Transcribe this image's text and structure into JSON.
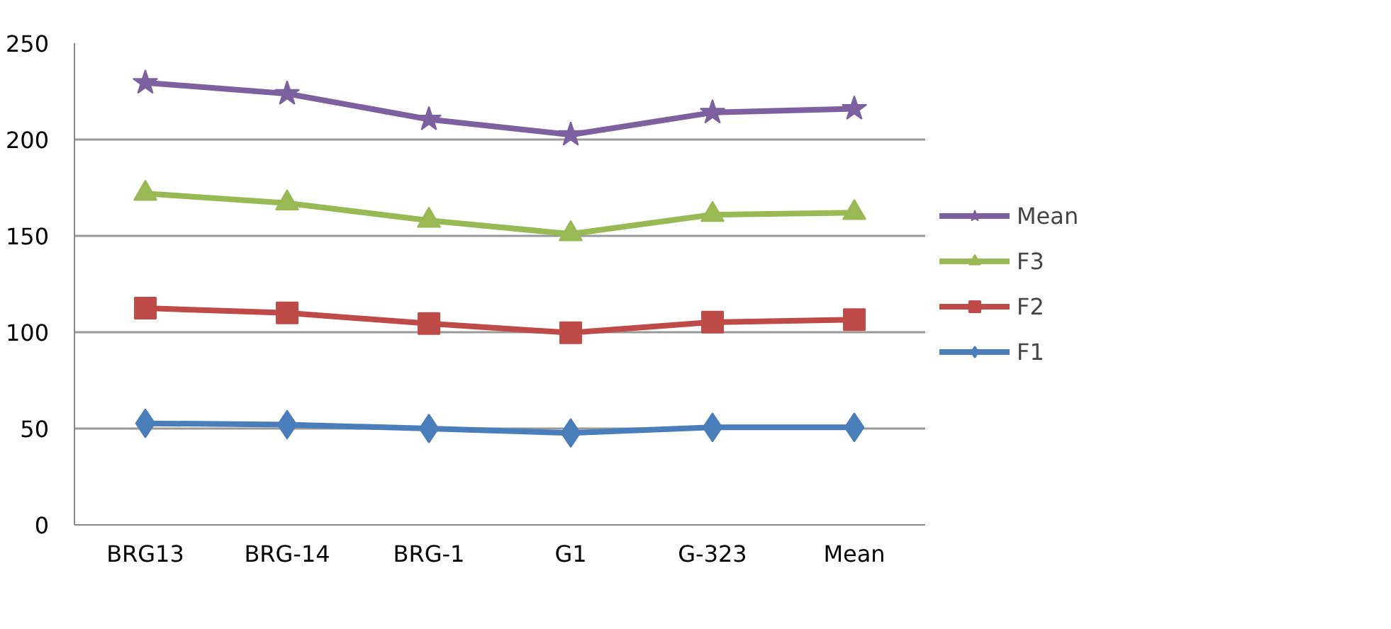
{
  "chart_data": {
    "type": "line",
    "categories": [
      "BRG13",
      "BRG-14",
      "BRG-1",
      "G1",
      "G-323",
      "Mean"
    ],
    "series": [
      {
        "name": "F1",
        "color": "#4a7ebb",
        "marker": "diamond",
        "values": [
          52.7,
          52,
          50,
          47.7,
          50.6,
          50.6
        ]
      },
      {
        "name": "F2",
        "color": "#be4b48",
        "marker": "square",
        "values": [
          112.5,
          110,
          104.5,
          99.7,
          105.2,
          106.5
        ]
      },
      {
        "name": "F3",
        "color": "#98b954",
        "marker": "triangle",
        "values": [
          172,
          167,
          158,
          151,
          161,
          162
        ]
      },
      {
        "name": "Mean",
        "color": "#7d60a0",
        "marker": "star",
        "values": [
          229.5,
          223.8,
          210.5,
          202.5,
          214,
          216
        ]
      }
    ],
    "ylim": [
      0,
      250
    ],
    "yticks": [
      0,
      50,
      100,
      150,
      200,
      250
    ],
    "grid": "y",
    "legend": "right",
    "line_style": "solid"
  }
}
